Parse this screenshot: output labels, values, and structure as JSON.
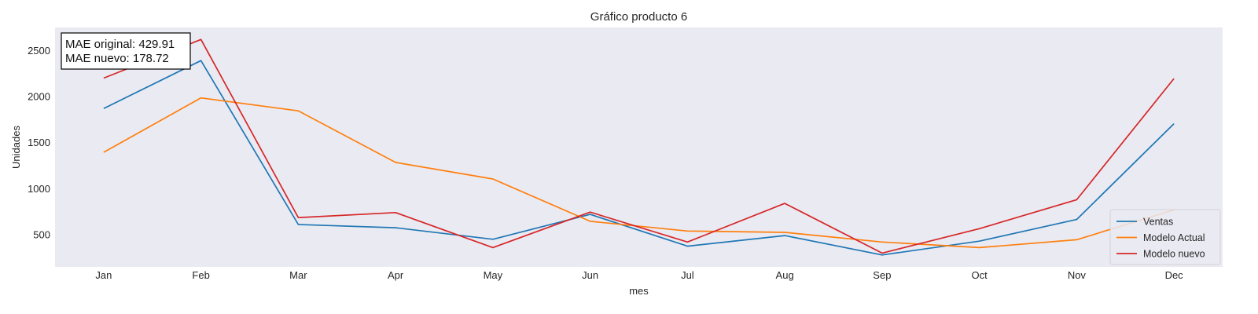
{
  "chart_data": {
    "type": "line",
    "title": "Gráfico producto 6",
    "xlabel": "mes",
    "ylabel": "Unidades",
    "categories": [
      "Jan",
      "Feb",
      "Mar",
      "Apr",
      "May",
      "Jun",
      "Jul",
      "Aug",
      "Sep",
      "Oct",
      "Nov",
      "Dec"
    ],
    "ylim": [
      150,
      2750
    ],
    "yticks": [
      500,
      1000,
      1500,
      2000,
      2500
    ],
    "grid": false,
    "background": "#eaeaf2",
    "legend_position": "lower-right",
    "series": [
      {
        "name": "Ventas",
        "color": "#1f77b4",
        "values": [
          1870,
          2390,
          610,
          575,
          450,
          720,
          375,
          490,
          280,
          430,
          665,
          1705
        ]
      },
      {
        "name": "Modelo Actual",
        "color": "#ff7f0e",
        "values": [
          1395,
          1985,
          1845,
          1285,
          1105,
          645,
          540,
          525,
          420,
          360,
          445,
          770
        ]
      },
      {
        "name": "Modelo nuevo",
        "color": "#d62728",
        "values": [
          2200,
          2620,
          685,
          740,
          360,
          745,
          420,
          840,
          300,
          565,
          880,
          2195
        ]
      }
    ],
    "annotation": {
      "lines": [
        "MAE original: 429.91",
        "MAE nuevo: 178.72"
      ]
    }
  }
}
